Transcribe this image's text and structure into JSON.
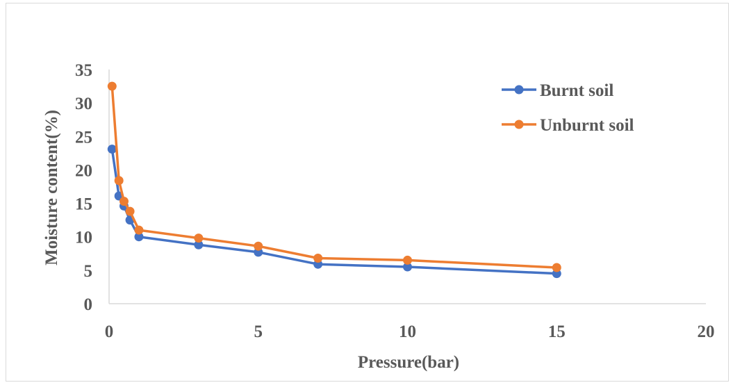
{
  "chart_data": {
    "type": "line",
    "title": "",
    "xlabel": "Pressure(bar)",
    "ylabel": "Moisture content(%)",
    "xlim": [
      0,
      20
    ],
    "ylim": [
      0,
      35
    ],
    "xticks": [
      0,
      5,
      10,
      15,
      20
    ],
    "yticks": [
      0,
      5,
      10,
      15,
      20,
      25,
      30,
      35
    ],
    "grid": false,
    "legend_position": "top-right",
    "series": [
      {
        "name": "Burnt soil",
        "color": "#4472c4",
        "x": [
          0.1,
          0.33,
          0.5,
          0.7,
          1,
          3,
          5,
          7,
          10,
          15
        ],
        "y": [
          23.1,
          16.1,
          14.6,
          12.5,
          10.0,
          8.8,
          7.7,
          5.9,
          5.5,
          4.5
        ]
      },
      {
        "name": "Unburnt soil",
        "color": "#ed7d31",
        "x": [
          0.1,
          0.33,
          0.5,
          0.7,
          1,
          3,
          5,
          7,
          10,
          15
        ],
        "y": [
          32.5,
          18.4,
          15.3,
          13.8,
          11.0,
          9.8,
          8.6,
          6.8,
          6.5,
          5.4
        ]
      }
    ]
  }
}
